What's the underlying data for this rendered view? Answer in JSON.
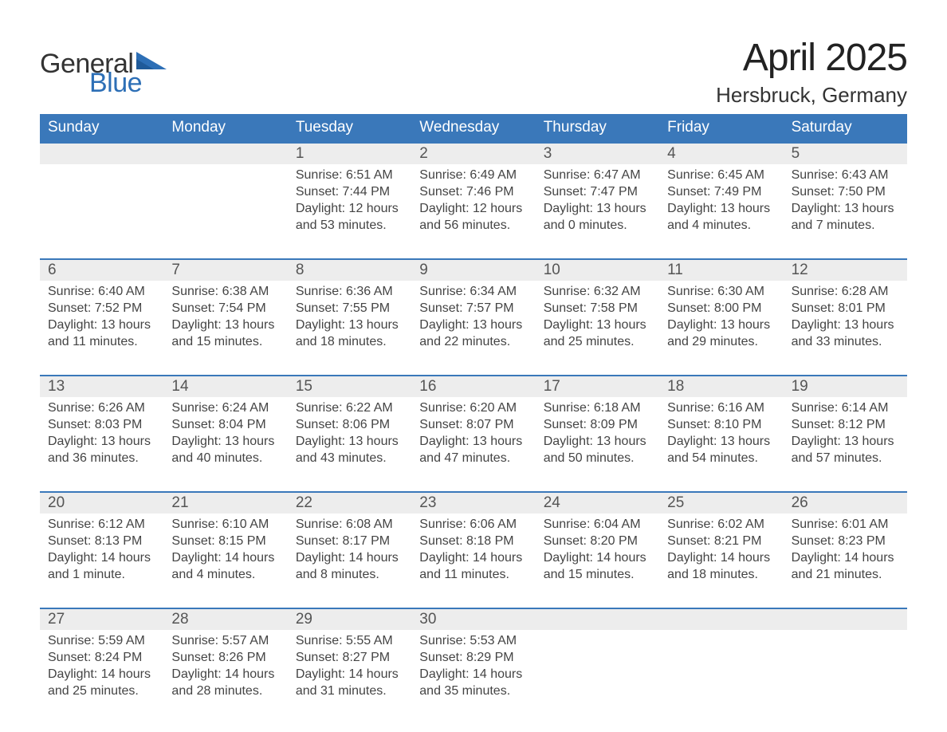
{
  "logo": {
    "word1": "General",
    "word2": "Blue",
    "word1_color": "#333333",
    "word2_color": "#2d6fb6",
    "triangle_color": "#2d6fb6",
    "fontsize": 34
  },
  "header": {
    "month_title": "April 2025",
    "location": "Hersbruck, Germany",
    "month_title_fontsize": 48,
    "location_fontsize": 26,
    "text_color": "#222222"
  },
  "calendar": {
    "type": "table",
    "header_bg": "#3a78ba",
    "header_text_color": "#ffffff",
    "daynum_bg": "#ededed",
    "daynum_text_color": "#555555",
    "week_border_color": "#3a78ba",
    "body_text_color": "#444444",
    "background_color": "#ffffff",
    "header_fontsize": 19,
    "daynum_fontsize": 19,
    "body_fontsize": 16,
    "days_of_week": [
      "Sunday",
      "Monday",
      "Tuesday",
      "Wednesday",
      "Thursday",
      "Friday",
      "Saturday"
    ],
    "weeks": [
      [
        {},
        {},
        {
          "num": "1",
          "sunrise": "Sunrise: 6:51 AM",
          "sunset": "Sunset: 7:44 PM",
          "d1": "Daylight: 12 hours",
          "d2": "and 53 minutes."
        },
        {
          "num": "2",
          "sunrise": "Sunrise: 6:49 AM",
          "sunset": "Sunset: 7:46 PM",
          "d1": "Daylight: 12 hours",
          "d2": "and 56 minutes."
        },
        {
          "num": "3",
          "sunrise": "Sunrise: 6:47 AM",
          "sunset": "Sunset: 7:47 PM",
          "d1": "Daylight: 13 hours",
          "d2": "and 0 minutes."
        },
        {
          "num": "4",
          "sunrise": "Sunrise: 6:45 AM",
          "sunset": "Sunset: 7:49 PM",
          "d1": "Daylight: 13 hours",
          "d2": "and 4 minutes."
        },
        {
          "num": "5",
          "sunrise": "Sunrise: 6:43 AM",
          "sunset": "Sunset: 7:50 PM",
          "d1": "Daylight: 13 hours",
          "d2": "and 7 minutes."
        }
      ],
      [
        {
          "num": "6",
          "sunrise": "Sunrise: 6:40 AM",
          "sunset": "Sunset: 7:52 PM",
          "d1": "Daylight: 13 hours",
          "d2": "and 11 minutes."
        },
        {
          "num": "7",
          "sunrise": "Sunrise: 6:38 AM",
          "sunset": "Sunset: 7:54 PM",
          "d1": "Daylight: 13 hours",
          "d2": "and 15 minutes."
        },
        {
          "num": "8",
          "sunrise": "Sunrise: 6:36 AM",
          "sunset": "Sunset: 7:55 PM",
          "d1": "Daylight: 13 hours",
          "d2": "and 18 minutes."
        },
        {
          "num": "9",
          "sunrise": "Sunrise: 6:34 AM",
          "sunset": "Sunset: 7:57 PM",
          "d1": "Daylight: 13 hours",
          "d2": "and 22 minutes."
        },
        {
          "num": "10",
          "sunrise": "Sunrise: 6:32 AM",
          "sunset": "Sunset: 7:58 PM",
          "d1": "Daylight: 13 hours",
          "d2": "and 25 minutes."
        },
        {
          "num": "11",
          "sunrise": "Sunrise: 6:30 AM",
          "sunset": "Sunset: 8:00 PM",
          "d1": "Daylight: 13 hours",
          "d2": "and 29 minutes."
        },
        {
          "num": "12",
          "sunrise": "Sunrise: 6:28 AM",
          "sunset": "Sunset: 8:01 PM",
          "d1": "Daylight: 13 hours",
          "d2": "and 33 minutes."
        }
      ],
      [
        {
          "num": "13",
          "sunrise": "Sunrise: 6:26 AM",
          "sunset": "Sunset: 8:03 PM",
          "d1": "Daylight: 13 hours",
          "d2": "and 36 minutes."
        },
        {
          "num": "14",
          "sunrise": "Sunrise: 6:24 AM",
          "sunset": "Sunset: 8:04 PM",
          "d1": "Daylight: 13 hours",
          "d2": "and 40 minutes."
        },
        {
          "num": "15",
          "sunrise": "Sunrise: 6:22 AM",
          "sunset": "Sunset: 8:06 PM",
          "d1": "Daylight: 13 hours",
          "d2": "and 43 minutes."
        },
        {
          "num": "16",
          "sunrise": "Sunrise: 6:20 AM",
          "sunset": "Sunset: 8:07 PM",
          "d1": "Daylight: 13 hours",
          "d2": "and 47 minutes."
        },
        {
          "num": "17",
          "sunrise": "Sunrise: 6:18 AM",
          "sunset": "Sunset: 8:09 PM",
          "d1": "Daylight: 13 hours",
          "d2": "and 50 minutes."
        },
        {
          "num": "18",
          "sunrise": "Sunrise: 6:16 AM",
          "sunset": "Sunset: 8:10 PM",
          "d1": "Daylight: 13 hours",
          "d2": "and 54 minutes."
        },
        {
          "num": "19",
          "sunrise": "Sunrise: 6:14 AM",
          "sunset": "Sunset: 8:12 PM",
          "d1": "Daylight: 13 hours",
          "d2": "and 57 minutes."
        }
      ],
      [
        {
          "num": "20",
          "sunrise": "Sunrise: 6:12 AM",
          "sunset": "Sunset: 8:13 PM",
          "d1": "Daylight: 14 hours",
          "d2": "and 1 minute."
        },
        {
          "num": "21",
          "sunrise": "Sunrise: 6:10 AM",
          "sunset": "Sunset: 8:15 PM",
          "d1": "Daylight: 14 hours",
          "d2": "and 4 minutes."
        },
        {
          "num": "22",
          "sunrise": "Sunrise: 6:08 AM",
          "sunset": "Sunset: 8:17 PM",
          "d1": "Daylight: 14 hours",
          "d2": "and 8 minutes."
        },
        {
          "num": "23",
          "sunrise": "Sunrise: 6:06 AM",
          "sunset": "Sunset: 8:18 PM",
          "d1": "Daylight: 14 hours",
          "d2": "and 11 minutes."
        },
        {
          "num": "24",
          "sunrise": "Sunrise: 6:04 AM",
          "sunset": "Sunset: 8:20 PM",
          "d1": "Daylight: 14 hours",
          "d2": "and 15 minutes."
        },
        {
          "num": "25",
          "sunrise": "Sunrise: 6:02 AM",
          "sunset": "Sunset: 8:21 PM",
          "d1": "Daylight: 14 hours",
          "d2": "and 18 minutes."
        },
        {
          "num": "26",
          "sunrise": "Sunrise: 6:01 AM",
          "sunset": "Sunset: 8:23 PM",
          "d1": "Daylight: 14 hours",
          "d2": "and 21 minutes."
        }
      ],
      [
        {
          "num": "27",
          "sunrise": "Sunrise: 5:59 AM",
          "sunset": "Sunset: 8:24 PM",
          "d1": "Daylight: 14 hours",
          "d2": "and 25 minutes."
        },
        {
          "num": "28",
          "sunrise": "Sunrise: 5:57 AM",
          "sunset": "Sunset: 8:26 PM",
          "d1": "Daylight: 14 hours",
          "d2": "and 28 minutes."
        },
        {
          "num": "29",
          "sunrise": "Sunrise: 5:55 AM",
          "sunset": "Sunset: 8:27 PM",
          "d1": "Daylight: 14 hours",
          "d2": "and 31 minutes."
        },
        {
          "num": "30",
          "sunrise": "Sunrise: 5:53 AM",
          "sunset": "Sunset: 8:29 PM",
          "d1": "Daylight: 14 hours",
          "d2": "and 35 minutes."
        },
        {},
        {},
        {}
      ]
    ]
  }
}
